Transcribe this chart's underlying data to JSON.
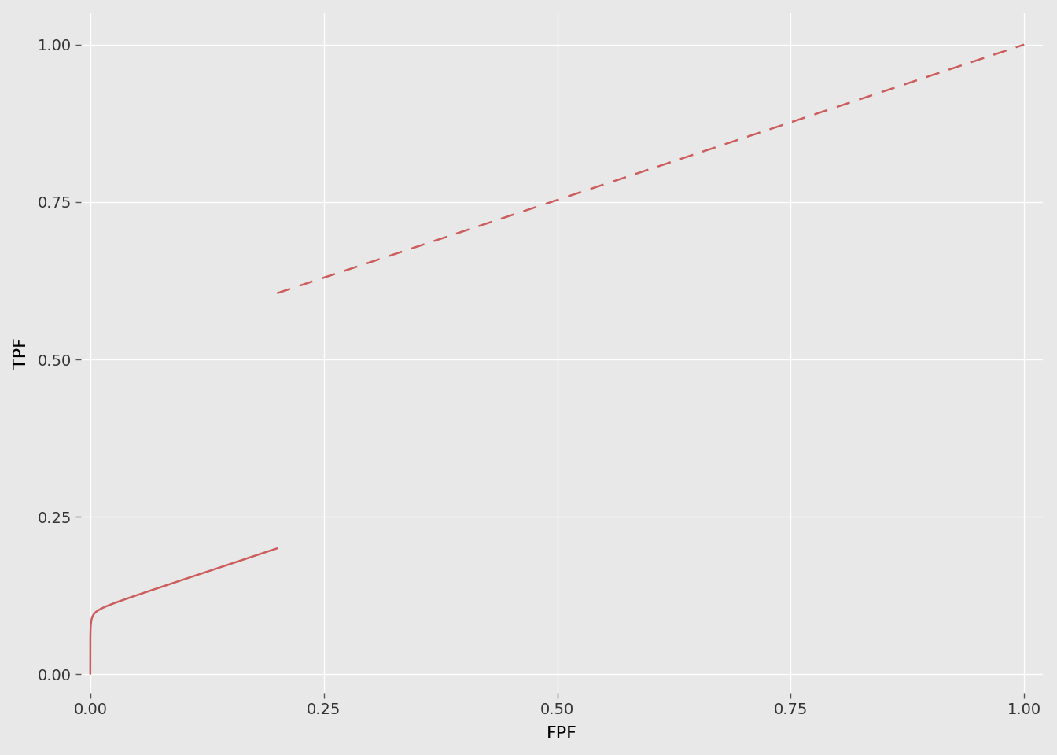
{
  "title": "",
  "xlabel": "FPF",
  "ylabel": "TPF",
  "xlim": [
    -0.01,
    1.02
  ],
  "ylim": [
    -0.03,
    1.05
  ],
  "xticks": [
    0.0,
    0.25,
    0.5,
    0.75,
    1.0
  ],
  "yticks": [
    0.0,
    0.25,
    0.5,
    0.75,
    1.0
  ],
  "line_color": "#cd5c5c",
  "background_color": "#e8e8e8",
  "grid_color": "#ffffff",
  "slope_dashed": 0.4935272,
  "mu": 3.5,
  "lambda_val": 0.2231,
  "line_width": 1.8,
  "tick_fontsize": 14,
  "label_fontsize": 16
}
